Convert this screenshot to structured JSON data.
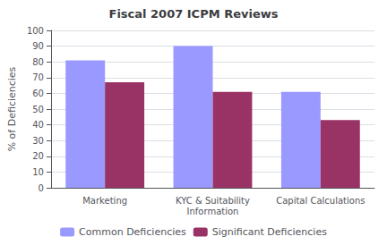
{
  "chart_data": {
    "type": "bar",
    "title": "Fiscal 2007 ICPM Reviews",
    "categories": [
      "Marketing",
      "KYC & Suitability\nInformation",
      "Capital Calculations"
    ],
    "series": [
      {
        "name": "Common Deficiencies",
        "color": "#9999ff",
        "values": [
          81,
          90,
          61
        ]
      },
      {
        "name": "Significant Deficiencies",
        "color": "#993366",
        "values": [
          67,
          61,
          43
        ]
      }
    ],
    "ylabel": "% of Deficiencies",
    "ylim": [
      0,
      100
    ],
    "yticks": [
      0,
      10,
      20,
      30,
      40,
      50,
      60,
      70,
      80,
      90,
      100
    ],
    "grid": true,
    "legend": "bottom"
  }
}
